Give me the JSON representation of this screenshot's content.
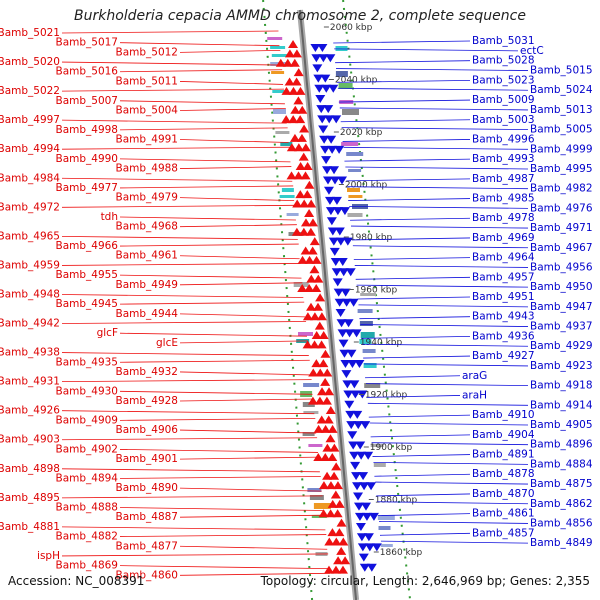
{
  "title": "Burkholderia cepacia AMMD chromosome 2, complete sequence",
  "footer": {
    "accession": "Accession: NC_008391",
    "summary": "Topology: circular, Length: 2,646,969 bp; Genes: 2,355"
  },
  "colors": {
    "left_strand": "#ee1111",
    "right_strand": "#1111dd",
    "left_text": "#dd0000",
    "right_text": "#0000cc",
    "axis": "#888888",
    "dotted_track": "#339933",
    "kbp_text": "#333333"
  },
  "kbp_ticks": [
    {
      "label": "2060 kbp",
      "value": 2060
    },
    {
      "label": "2040 kbp",
      "value": 2040
    },
    {
      "label": "2020 kbp",
      "value": 2020
    },
    {
      "label": "2000 kbp",
      "value": 2000
    },
    {
      "label": "1980 kbp",
      "value": 1980
    },
    {
      "label": "1960 kbp",
      "value": 1960
    },
    {
      "label": "1940 kbp",
      "value": 1940
    },
    {
      "label": "1920 kbp",
      "value": 1920
    },
    {
      "label": "1900 kbp",
      "value": 1900
    },
    {
      "label": "1880 kbp",
      "value": 1880
    },
    {
      "label": "1860 kbp",
      "value": 1860
    }
  ],
  "left_genes": [
    "Bamb_5021",
    "Bamb_5017",
    "Bamb_5012",
    "Bamb_5020",
    "Bamb_5016",
    "Bamb_5011",
    "Bamb_5022",
    "Bamb_5007",
    "Bamb_5004",
    "Bamb_4997",
    "Bamb_4998",
    "Bamb_4991",
    "Bamb_4994",
    "Bamb_4990",
    "Bamb_4988",
    "Bamb_4984",
    "Bamb_4977",
    "Bamb_4979",
    "Bamb_4972",
    "tdh",
    "Bamb_4968",
    "Bamb_4965",
    "Bamb_4966",
    "Bamb_4961",
    "Bamb_4959",
    "Bamb_4955",
    "Bamb_4949",
    "Bamb_4948",
    "Bamb_4945",
    "Bamb_4944",
    "Bamb_4942",
    "glcF",
    "glcE",
    "Bamb_4938",
    "Bamb_4935",
    "Bamb_4932",
    "Bamb_4931",
    "Bamb_4930",
    "Bamb_4928",
    "Bamb_4926",
    "Bamb_4909",
    "Bamb_4906",
    "Bamb_4903",
    "Bamb_4902",
    "Bamb_4901",
    "Bamb_4898",
    "Bamb_4894",
    "Bamb_4890",
    "Bamb_4895",
    "Bamb_4888",
    "Bamb_4887",
    "Bamb_4881",
    "Bamb_4882",
    "Bamb_4877",
    "ispH",
    "Bamb_4869",
    "Bamb_4860"
  ],
  "right_genes": [
    "Bamb_5031",
    "ectC",
    "Bamb_5028",
    "Bamb_5015",
    "Bamb_5023",
    "Bamb_5024",
    "Bamb_5009",
    "Bamb_5013",
    "Bamb_5003",
    "Bamb_5005",
    "Bamb_4996",
    "Bamb_4999",
    "Bamb_4993",
    "Bamb_4995",
    "Bamb_4987",
    "Bamb_4982",
    "Bamb_4985",
    "Bamb_4976",
    "Bamb_4978",
    "Bamb_4971",
    "Bamb_4969",
    "Bamb_4967",
    "Bamb_4964",
    "Bamb_4956",
    "Bamb_4957",
    "Bamb_4950",
    "Bamb_4951",
    "Bamb_4947",
    "Bamb_4943",
    "Bamb_4937",
    "Bamb_4936",
    "Bamb_4929",
    "Bamb_4927",
    "Bamb_4923",
    "araG",
    "Bamb_4918",
    "araH",
    "Bamb_4914",
    "Bamb_4910",
    "Bamb_4905",
    "Bamb_4904",
    "Bamb_4896",
    "Bamb_4891",
    "Bamb_4884",
    "Bamb_4878",
    "Bamb_4875",
    "Bamb_4870",
    "Bamb_4862",
    "Bamb_4861",
    "Bamb_4856",
    "Bamb_4857",
    "Bamb_4849"
  ]
}
